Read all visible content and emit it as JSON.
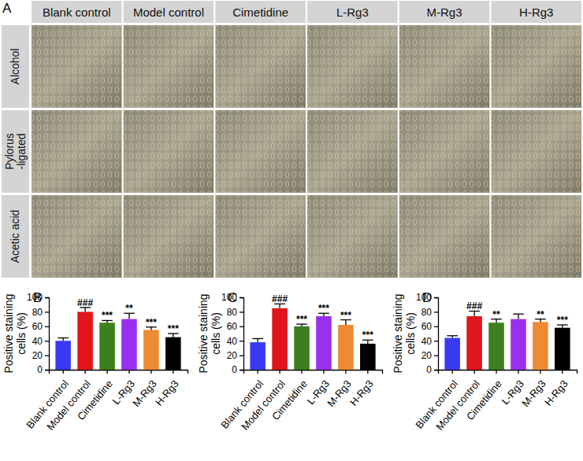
{
  "panel_a": {
    "label": "A",
    "columns": [
      "Blank control",
      "Model control",
      "Cimetidine",
      "L-Rg3",
      "M-Rg3",
      "H-Rg3"
    ],
    "rows": [
      [
        "Alcohol"
      ],
      [
        "Pylorus",
        "-ligated"
      ],
      [
        "Acetic acid"
      ]
    ]
  },
  "chart_data": [
    {
      "type": "bar",
      "title": "B",
      "categories": [
        "Blank control",
        "Model control",
        "Cimetidine",
        "L-Rg3",
        "M-Rg3",
        "H-Rg3"
      ],
      "values": [
        40,
        80,
        65,
        70,
        55,
        45
      ],
      "errors": [
        4,
        6,
        3,
        8,
        4,
        5
      ],
      "annotations": [
        "",
        "###",
        "***",
        "**",
        "***",
        "***"
      ],
      "colors": [
        "#3a3af5",
        "#e0161c",
        "#3d7f1c",
        "#9a2ff0",
        "#ee8a33",
        "#000000"
      ],
      "y_label": [
        "Positive staining",
        "cells (%)"
      ],
      "ylim": [
        0,
        100
      ],
      "yticks": [
        0,
        20,
        40,
        60,
        80,
        100
      ]
    },
    {
      "type": "bar",
      "title": "C",
      "categories": [
        "Blank control",
        "Model control",
        "Cimetidine",
        "L-Rg3",
        "M-Rg3",
        "H-Rg3"
      ],
      "values": [
        38,
        85,
        60,
        74,
        62,
        36
      ],
      "errors": [
        5,
        6,
        3,
        4,
        7,
        5
      ],
      "annotations": [
        "",
        "###",
        "***",
        "***",
        "***",
        "***"
      ],
      "colors": [
        "#3a3af5",
        "#e0161c",
        "#3d7f1c",
        "#9a2ff0",
        "#ee8a33",
        "#000000"
      ],
      "y_label": [
        "Positive staining",
        "cells (%)"
      ],
      "ylim": [
        0,
        100
      ],
      "yticks": [
        0,
        20,
        40,
        60,
        80,
        100
      ]
    },
    {
      "type": "bar",
      "title": "D",
      "categories": [
        "Blank control",
        "Model control",
        "Cimetidine",
        "L-Rg3",
        "M-Rg3",
        "H-Rg3"
      ],
      "values": [
        44,
        74,
        65,
        70,
        66,
        58
      ],
      "errors": [
        3,
        7,
        5,
        7,
        4,
        4
      ],
      "annotations": [
        "",
        "###",
        "**",
        "",
        "**",
        "***"
      ],
      "colors": [
        "#3a3af5",
        "#e0161c",
        "#3d7f1c",
        "#9a2ff0",
        "#ee8a33",
        "#000000"
      ],
      "y_label": [
        "Positive staining",
        "cells (%)"
      ],
      "ylim": [
        0,
        100
      ],
      "yticks": [
        0,
        20,
        40,
        60,
        80,
        100
      ]
    }
  ]
}
